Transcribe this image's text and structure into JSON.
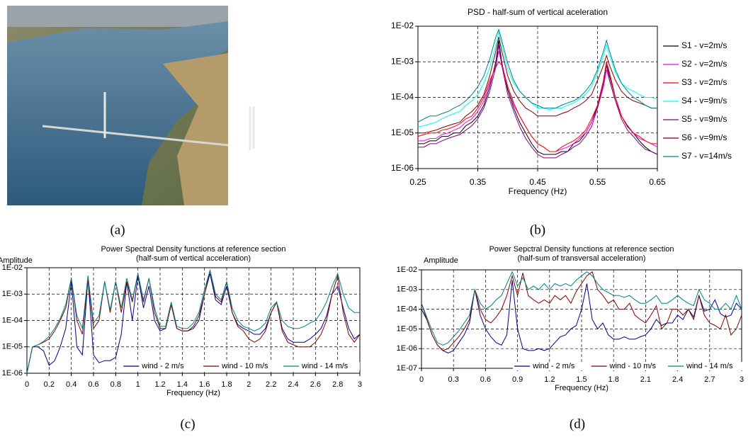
{
  "photo": {
    "caption": "(a)"
  },
  "chart_data": [
    {
      "type": "line",
      "title": "PSD - half-sum of vertical aceleration",
      "x_label": "Frequency (Hz)",
      "caption": "(b)",
      "x": [
        0.25,
        0.26,
        0.27,
        0.28,
        0.29,
        0.3,
        0.31,
        0.32,
        0.33,
        0.34,
        0.35,
        0.36,
        0.37,
        0.38,
        0.385,
        0.39,
        0.4,
        0.41,
        0.42,
        0.43,
        0.44,
        0.45,
        0.46,
        0.47,
        0.48,
        0.49,
        0.5,
        0.51,
        0.52,
        0.53,
        0.54,
        0.55,
        0.56,
        0.565,
        0.57,
        0.58,
        0.59,
        0.6,
        0.61,
        0.62,
        0.63,
        0.64,
        0.65
      ],
      "xlim": [
        0.25,
        0.65
      ],
      "xticks": [
        0.25,
        0.35,
        0.45,
        0.55,
        0.65
      ],
      "ylim": [
        1e-06,
        0.01
      ],
      "ylog": true,
      "yticks": [
        {
          "value": 0.01,
          "label": "1E-02"
        },
        {
          "value": 0.001,
          "label": "1E-03"
        },
        {
          "value": 0.0001,
          "label": "1E-04"
        },
        {
          "value": 1e-05,
          "label": "1E-05"
        },
        {
          "value": 1e-06,
          "label": "1E-06"
        }
      ],
      "grid": true,
      "legend": "right",
      "series": [
        {
          "name": "S1 - v=2m/s",
          "color": "#000000",
          "values": [
            5e-06,
            5e-06,
            6e-06,
            6e-06,
            8e-06,
            8e-06,
            1e-05,
            1e-05,
            1.6e-05,
            2e-05,
            3e-05,
            6e-05,
            0.0002,
            0.001,
            0.004,
            0.001,
            0.00016,
            5e-05,
            2e-05,
            1e-05,
            5e-06,
            3e-06,
            2.5e-06,
            2.5e-06,
            2.5e-06,
            3e-06,
            3e-06,
            5e-06,
            6e-06,
            1e-05,
            2e-05,
            6e-05,
            0.0003,
            0.001,
            0.0004,
            0.0001,
            3e-05,
            1.6e-05,
            1e-05,
            6e-06,
            4e-06,
            3e-06,
            2.5e-06
          ]
        },
        {
          "name": "S2 - v=2m/s",
          "color": "#ff00ff",
          "values": [
            6e-06,
            6e-06,
            7e-06,
            7e-06,
            9e-06,
            1e-05,
            1.2e-05,
            1.4e-05,
            2e-05,
            2.5e-05,
            4e-05,
            8e-05,
            0.00025,
            0.0008,
            0.002,
            0.0009,
            0.0002,
            6e-05,
            3e-05,
            1.5e-05,
            8e-06,
            5e-06,
            4e-06,
            3e-06,
            3e-06,
            3.5e-06,
            4e-06,
            5e-06,
            7e-06,
            1e-05,
            2e-05,
            5e-05,
            0.0002,
            0.0006,
            0.0003,
            8e-05,
            3e-05,
            1.5e-05,
            1e-05,
            7e-06,
            6e-06,
            5e-06,
            4e-06
          ]
        },
        {
          "name": "S3 - v=2m/s",
          "color": "#ff0000",
          "values": [
            8e-06,
            9e-06,
            1e-05,
            1e-05,
            1.2e-05,
            1.3e-05,
            1.5e-05,
            1.8e-05,
            2.5e-05,
            3e-05,
            5e-05,
            0.0001,
            0.0003,
            0.0007,
            0.001,
            0.0008,
            0.0002,
            7e-05,
            3e-05,
            1.5e-05,
            8e-06,
            5e-06,
            4e-06,
            3e-06,
            3e-06,
            4e-06,
            5e-06,
            6e-06,
            8e-06,
            1.2e-05,
            2.5e-05,
            6e-05,
            0.0003,
            0.001,
            0.0005,
            0.0001,
            3e-05,
            1.5e-05,
            1e-05,
            8e-06,
            6e-06,
            5e-06,
            5e-06
          ]
        },
        {
          "name": "S4 - v=9m/s",
          "color": "#00ffff",
          "values": [
            1.5e-05,
            1.6e-05,
            1.8e-05,
            2e-05,
            2.5e-05,
            3e-05,
            3.5e-05,
            4e-05,
            6e-05,
            8e-05,
            0.00012,
            0.00025,
            0.0007,
            0.003,
            0.007,
            0.003,
            0.0006,
            0.00025,
            0.00015,
            0.0001,
            7e-05,
            5e-05,
            5e-05,
            4.5e-05,
            5e-05,
            5e-05,
            6e-05,
            7e-05,
            9e-05,
            0.00012,
            0.0002,
            0.0005,
            0.0015,
            0.003,
            0.0015,
            0.0005,
            0.00025,
            0.00018,
            0.00015,
            0.00012,
            0.0001,
            0.0001,
            9e-05
          ]
        },
        {
          "name": "S5 - v=9m/s",
          "color": "#800080",
          "values": [
            4e-06,
            4e-06,
            5e-06,
            5e-06,
            6e-06,
            7e-06,
            8e-06,
            9e-06,
            1.2e-05,
            1.6e-05,
            2.5e-05,
            5e-05,
            0.00015,
            0.0007,
            0.003,
            0.0008,
            0.00012,
            4e-05,
            1.5e-05,
            7e-06,
            4e-06,
            2.5e-06,
            2e-06,
            2e-06,
            2e-06,
            2.5e-06,
            3e-06,
            4e-06,
            5e-06,
            8e-06,
            1.5e-05,
            5e-05,
            0.00025,
            0.0008,
            0.0003,
            8e-05,
            2.5e-05,
            1.2e-05,
            8e-06,
            5e-06,
            3.5e-06,
            3e-06,
            2.5e-06
          ]
        },
        {
          "name": "S6 - v=9m/s",
          "color": "#800000",
          "values": [
            1e-05,
            1e-05,
            1.1e-05,
            1.2e-05,
            1.4e-05,
            1.6e-05,
            1.8e-05,
            2e-05,
            3e-05,
            4e-05,
            6e-05,
            0.00012,
            0.0004,
            0.002,
            0.005,
            0.002,
            0.0004,
            0.00015,
            8e-05,
            5e-05,
            4e-05,
            3e-05,
            3e-05,
            3e-05,
            3e-05,
            3.5e-05,
            4e-05,
            5e-05,
            6e-05,
            8e-05,
            0.00012,
            0.0003,
            0.0008,
            0.0015,
            0.0008,
            0.0003,
            0.00015,
            0.0001,
            8e-05,
            7e-05,
            6e-05,
            5e-05,
            5e-05
          ]
        },
        {
          "name": "S7 - v=14m/s",
          "color": "#008080",
          "values": [
            2e-05,
            2.5e-05,
            3e-05,
            3e-05,
            3.5e-05,
            4e-05,
            5e-05,
            6e-05,
            8e-05,
            0.00012,
            0.0002,
            0.0004,
            0.0012,
            0.005,
            0.008,
            0.004,
            0.0009,
            0.0003,
            0.00015,
            0.0001,
            7e-05,
            6e-05,
            5e-05,
            5e-05,
            5e-05,
            6e-05,
            7e-05,
            8e-05,
            0.0001,
            0.00015,
            0.00025,
            0.0006,
            0.002,
            0.004,
            0.002,
            0.0006,
            0.00025,
            0.00015,
            0.0001,
            8e-05,
            6e-05,
            5e-05,
            5e-05
          ]
        }
      ]
    },
    {
      "type": "line",
      "title": "Power Spectral Density functions at reference section",
      "subtitle": "(half-sum of vertical acceleration)",
      "y_label": "Amplitude",
      "x_label": "Frequency (Hz)",
      "caption": "(c)",
      "x": [
        0,
        0.05,
        0.1,
        0.15,
        0.2,
        0.25,
        0.3,
        0.35,
        0.4,
        0.45,
        0.5,
        0.55,
        0.6,
        0.65,
        0.7,
        0.75,
        0.8,
        0.85,
        0.9,
        0.95,
        1,
        1.05,
        1.1,
        1.15,
        1.2,
        1.25,
        1.3,
        1.35,
        1.4,
        1.45,
        1.5,
        1.55,
        1.6,
        1.65,
        1.7,
        1.75,
        1.8,
        1.85,
        1.9,
        1.95,
        2,
        2.05,
        2.1,
        2.15,
        2.2,
        2.25,
        2.3,
        2.35,
        2.4,
        2.45,
        2.5,
        2.55,
        2.6,
        2.65,
        2.7,
        2.75,
        2.8,
        2.85,
        2.9,
        2.95,
        3
      ],
      "xlim": [
        0,
        3
      ],
      "xticks": [
        0,
        0.2,
        0.4,
        0.6,
        0.8,
        1,
        1.2,
        1.4,
        1.6,
        1.8,
        2,
        2.2,
        2.4,
        2.6,
        2.8,
        3
      ],
      "ylim": [
        1e-06,
        0.01
      ],
      "ylog": true,
      "yticks": [
        {
          "value": 0.01,
          "label": "1E-02"
        },
        {
          "value": 0.001,
          "label": "1E-03"
        },
        {
          "value": 0.0001,
          "label": "1E-04"
        },
        {
          "value": 1e-05,
          "label": "1E-05"
        },
        {
          "value": 1e-06,
          "label": "1E-06"
        }
      ],
      "grid": true,
      "legend": "bottom",
      "series": [
        {
          "name": "wind - 2 m/s",
          "color": "#000080",
          "values": [
            1e-06,
            1e-05,
            1e-05,
            7e-06,
            2e-06,
            3e-06,
            1e-05,
            5e-05,
            0.003,
            1e-05,
            5e-06,
            0.004,
            5e-06,
            2.5e-06,
            3e-06,
            3e-06,
            4e-06,
            3e-05,
            0.003,
            0.0001,
            0.005,
            0.0003,
            0.002,
            0.0001,
            4e-05,
            5e-05,
            0.0004,
            5e-05,
            4e-05,
            4e-05,
            5e-05,
            0.0001,
            0.001,
            0.006,
            0.0006,
            0.0004,
            0.002,
            0.0002,
            7e-05,
            5e-05,
            4e-05,
            3e-05,
            3e-05,
            5e-05,
            0.0002,
            0.0005,
            5e-05,
            2e-05,
            1.5e-05,
            1.5e-05,
            1.5e-05,
            2e-05,
            3e-05,
            5e-05,
            0.00015,
            0.001,
            0.002,
            0.0003,
            5e-05,
            2e-05,
            3e-05
          ]
        },
        {
          "name": "wind - 10 m/s",
          "color": "#800000",
          "values": [
            1e-06,
            1e-05,
            1.2e-05,
            1.5e-05,
            2e-05,
            4e-05,
            0.0001,
            0.0003,
            0.004,
            0.0001,
            3e-05,
            0.004,
            5e-05,
            0.0001,
            0.003,
            0.0002,
            0.003,
            0.0002,
            0.003,
            0.0005,
            0.006,
            0.0005,
            0.004,
            0.0002,
            5e-05,
            5e-05,
            0.0004,
            5e-05,
            4e-05,
            4e-05,
            6e-05,
            0.00015,
            0.001,
            0.008,
            0.0008,
            0.0005,
            0.003,
            0.0002,
            6e-05,
            4e-05,
            2e-05,
            1.5e-05,
            2e-05,
            4e-05,
            0.0002,
            0.0005,
            4e-05,
            1.5e-05,
            1.2e-05,
            1e-05,
            1e-05,
            1e-05,
            1.5e-05,
            3e-05,
            0.0001,
            0.001,
            0.005,
            0.0002,
            3e-05,
            1.5e-05,
            3e-05
          ]
        },
        {
          "name": "wind - 14 m/s",
          "color": "#008080",
          "values": [
            1e-06,
            1e-05,
            1.2e-05,
            1.6e-05,
            2.5e-05,
            5e-05,
            0.00012,
            0.0004,
            0.004,
            0.00015,
            5e-05,
            0.005,
            8e-05,
            0.00015,
            0.003,
            0.00025,
            0.003,
            0.0003,
            0.004,
            0.0006,
            0.006,
            0.0006,
            0.004,
            0.0003,
            6e-05,
            6e-05,
            0.0005,
            6e-05,
            5e-05,
            5e-05,
            8e-05,
            0.0002,
            0.0015,
            0.008,
            0.001,
            0.0006,
            0.003,
            0.0003,
            0.0001,
            6e-05,
            5e-05,
            4e-05,
            5e-05,
            8e-05,
            0.0003,
            0.0005,
            0.0001,
            6e-05,
            5e-05,
            5e-05,
            6e-05,
            8e-05,
            0.0001,
            0.0002,
            0.0005,
            0.002,
            0.006,
            0.001,
            0.0003,
            0.0002,
            0.0002
          ]
        }
      ]
    },
    {
      "type": "line",
      "title": "Power Sepctral Density functions at reference section",
      "subtitle": "(half-sum of transversal acceleration)",
      "y_label": "Amplitude",
      "x_label": "Frequency (Hz)",
      "caption": "(d)",
      "x": [
        0,
        0.05,
        0.1,
        0.15,
        0.2,
        0.25,
        0.3,
        0.35,
        0.4,
        0.45,
        0.5,
        0.55,
        0.6,
        0.65,
        0.7,
        0.75,
        0.8,
        0.85,
        0.9,
        0.95,
        1,
        1.05,
        1.1,
        1.15,
        1.2,
        1.25,
        1.3,
        1.35,
        1.4,
        1.45,
        1.5,
        1.55,
        1.6,
        1.65,
        1.7,
        1.75,
        1.8,
        1.85,
        1.9,
        1.95,
        2,
        2.05,
        2.1,
        2.15,
        2.2,
        2.25,
        2.3,
        2.35,
        2.4,
        2.45,
        2.5,
        2.55,
        2.6,
        2.65,
        2.7,
        2.75,
        2.8,
        2.85,
        2.9,
        2.95,
        3
      ],
      "xlim": [
        0,
        3
      ],
      "xticks": [
        0,
        0.3,
        0.6,
        0.9,
        1.2,
        1.5,
        1.8,
        2.1,
        2.4,
        2.7,
        3
      ],
      "ylim": [
        1e-07,
        0.01
      ],
      "ylog": true,
      "yticks": [
        {
          "value": 0.01,
          "label": "1E-02"
        },
        {
          "value": 0.001,
          "label": "1E-03"
        },
        {
          "value": 0.0001,
          "label": "1E-04"
        },
        {
          "value": 1e-05,
          "label": "1E-05"
        },
        {
          "value": 1e-06,
          "label": "1E-06"
        },
        {
          "value": 1e-07,
          "label": "1E-07"
        }
      ],
      "grid": true,
      "legend": "bottom",
      "series": [
        {
          "name": "wind - 2 m/s",
          "color": "#000080",
          "values": [
            0.0001,
            3e-05,
            5e-06,
            1.5e-06,
            8e-07,
            6e-07,
            8e-07,
            2e-06,
            5e-06,
            2e-05,
            0.001,
            5e-05,
            1e-05,
            4e-06,
            2e-06,
            1.5e-06,
            5e-06,
            0.003,
            1e-05,
            1e-06,
            8e-07,
            8e-07,
            1e-06,
            8e-07,
            1e-06,
            2e-06,
            4e-06,
            5e-06,
            1e-05,
            1.5e-05,
            0.0001,
            0.002,
            3e-05,
            1e-05,
            2e-05,
            5e-06,
            3e-06,
            3e-06,
            4e-06,
            3e-06,
            3e-06,
            4e-06,
            5e-06,
            1e-05,
            3e-05,
            1.5e-05,
            2e-05,
            2e-05,
            5e-05,
            3e-05,
            0.0001,
            4e-05,
            0.0005,
            8e-05,
            0.0001,
            0.0003,
            6e-05,
            4e-05,
            5e-05,
            0.0002,
            0.0001
          ]
        },
        {
          "name": "wind - 10 m/s",
          "color": "#800000",
          "values": [
            0.0002,
            3e-05,
            5e-06,
            1.5e-06,
            8e-07,
            1e-06,
            2e-06,
            4e-06,
            1e-05,
            3e-05,
            0.001,
            0.0001,
            3e-05,
            2e-05,
            4e-05,
            0.0001,
            0.0005,
            0.005,
            0.0005,
            0.007,
            0.0005,
            0.0003,
            0.0002,
            0.0003,
            0.0002,
            0.0005,
            0.0003,
            0.0005,
            0.0002,
            0.0008,
            0.002,
            0.005,
            0.008,
            0.001,
            0.0005,
            0.0002,
            0.0003,
            0.0001,
            0.0001,
            0.0002,
            5e-05,
            3e-05,
            2e-05,
            5e-05,
            0.00015,
            1e-05,
            2e-05,
            0.0001,
            0.0001,
            5e-05,
            0.0001,
            3e-05,
            0.0005,
            5e-05,
            2e-05,
            1.5e-05,
            1e-05,
            5e-05,
            5e-06,
            1e-05,
            5e-05
          ]
        },
        {
          "name": "wind - 14 m/s",
          "color": "#008080",
          "values": [
            0.0002,
            4e-05,
            8e-06,
            2e-06,
            1.5e-06,
            2e-06,
            4e-06,
            8e-06,
            2e-05,
            5e-05,
            0.001,
            0.0002,
            0.0001,
            0.00015,
            0.0003,
            0.0005,
            0.002,
            0.008,
            0.0015,
            0.004,
            0.001,
            0.0015,
            0.001,
            0.002,
            0.001,
            0.002,
            0.0015,
            0.002,
            0.0015,
            0.003,
            0.005,
            0.008,
            0.005,
            0.002,
            0.001,
            0.0007,
            0.0005,
            0.0005,
            0.0004,
            0.0005,
            0.0003,
            0.0002,
            0.0002,
            0.0003,
            0.0005,
            0.0002,
            0.0002,
            0.0003,
            0.0005,
            0.0003,
            0.0002,
            0.00015,
            0.001,
            0.0003,
            0.0002,
            0.0001,
            0.0001,
            0.0002,
            0.0001,
            0.0005,
            0.0001
          ]
        }
      ]
    }
  ]
}
